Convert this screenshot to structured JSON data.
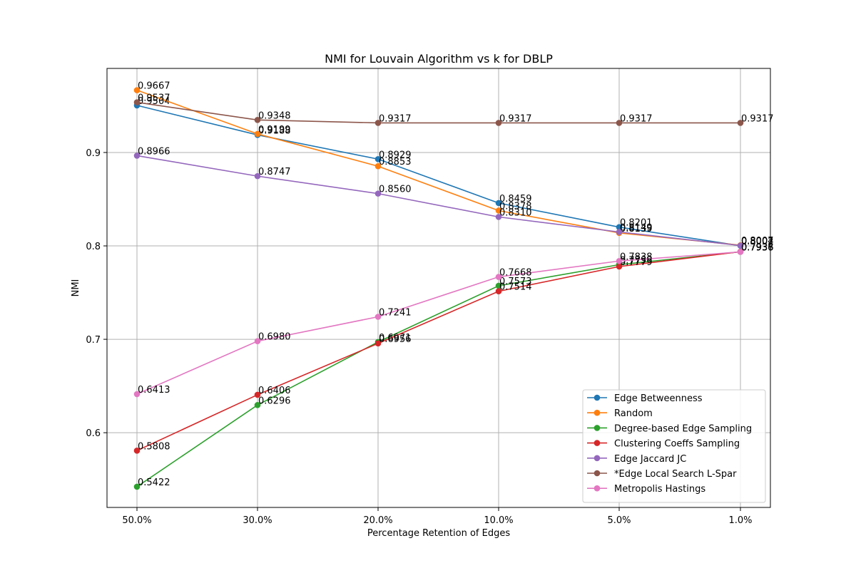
{
  "chart_data": {
    "type": "line",
    "title": "NMI for Louvain Algorithm vs k for DBLP",
    "xlabel": "Percentage Retention of Edges",
    "ylabel": "NMI",
    "categories": [
      "50.0%",
      "30.0%",
      "20.0%",
      "10.0%",
      "5.0%",
      "1.0%"
    ],
    "ylim": [
      0.52,
      0.99
    ],
    "yticks": [
      0.6,
      0.7,
      0.8,
      0.9
    ],
    "ytick_labels": [
      "0.6",
      "0.7",
      "0.8",
      "0.9"
    ],
    "grid": true,
    "legend_position": "bottom-right",
    "data_labels": true,
    "series": [
      {
        "name": "Edge Betweenness",
        "color": "#1f77b4",
        "values": [
          0.9504,
          0.9188,
          0.8929,
          0.8459,
          0.8201,
          0.8002
        ],
        "labels": [
          "0.9504",
          "0.9188",
          "0.8929",
          "0.8459",
          "0.8201",
          "0.8002"
        ]
      },
      {
        "name": "Random",
        "color": "#ff7f0e",
        "values": [
          0.9667,
          0.9199,
          0.8853,
          0.8378,
          0.8139,
          0.8007
        ],
        "labels": [
          "0.9667",
          "0.9199",
          "0.8853",
          "0.8378",
          "0.8139",
          "0.8007"
        ]
      },
      {
        "name": "Degree-based Edge Sampling",
        "color": "#2ca02c",
        "values": [
          0.5422,
          0.6296,
          0.6971,
          0.7573,
          0.7799,
          0.7937
        ],
        "labels": [
          "0.5422",
          "0.6296",
          "0.6971",
          "0.7573",
          "0.7799",
          "0.7937"
        ]
      },
      {
        "name": "Clustering Coeffs Sampling",
        "color": "#d62728",
        "values": [
          0.5808,
          0.6406,
          0.6956,
          0.7514,
          0.7779,
          0.7938
        ],
        "labels": [
          "0.5808",
          "0.6406",
          "0.6956",
          "0.7514",
          "0.7779",
          "0.7938"
        ]
      },
      {
        "name": "Edge Jaccard JC",
        "color": "#9467bd",
        "values": [
          0.8966,
          0.8747,
          0.856,
          0.831,
          0.8149,
          0.8004
        ],
        "labels": [
          "0.8966",
          "0.8747",
          "0.8560",
          "0.8310",
          "0.8149",
          "0.8004"
        ]
      },
      {
        "name": "*Edge Local Search L-Spar",
        "color": "#8c564b",
        "values": [
          0.9537,
          0.9348,
          0.9317,
          0.9317,
          0.9317,
          0.9317
        ],
        "labels": [
          "0.9537",
          "0.9348",
          "0.9317",
          "0.9317",
          "0.9317",
          "0.9317"
        ]
      },
      {
        "name": "Metropolis Hastings",
        "color": "#e377c2",
        "values": [
          0.6413,
          0.698,
          0.7241,
          0.7668,
          0.7838,
          0.7936
        ],
        "labels": [
          "0.6413",
          "0.6980",
          "0.7241",
          "0.7668",
          "0.7838",
          "0.7936"
        ]
      }
    ]
  }
}
